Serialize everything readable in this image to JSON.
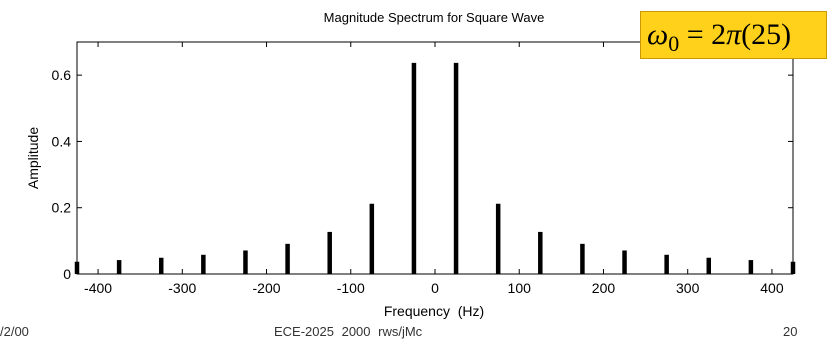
{
  "chart_data": {
    "type": "bar",
    "title": "Magnitude Spectrum for Square Wave",
    "xlabel": "Frequency  (Hz)",
    "ylabel": "Amplitude",
    "xlim": [
      -425,
      425
    ],
    "ylim": [
      0,
      0.7
    ],
    "xticks": [
      -400,
      -300,
      -200,
      -100,
      0,
      100,
      200,
      300,
      400
    ],
    "yticks": [
      0,
      0.2,
      0.4,
      0.6
    ],
    "x": [
      -425,
      -375,
      -325,
      -275,
      -225,
      -175,
      -125,
      -75,
      -25,
      25,
      75,
      125,
      175,
      225,
      275,
      325,
      375,
      425
    ],
    "values": [
      0.037,
      0.042,
      0.049,
      0.058,
      0.071,
      0.091,
      0.127,
      0.212,
      0.637,
      0.637,
      0.212,
      0.127,
      0.091,
      0.071,
      0.058,
      0.049,
      0.042,
      0.037
    ],
    "grid": false
  },
  "annotation": {
    "omega": "ω",
    "subscript": "0",
    "equals": " = 2",
    "pi": "π",
    "rest": "(25)"
  },
  "footer": {
    "left": "/2/00",
    "center": "ECE-2025  2000  rws/jMc",
    "right": "20"
  },
  "colors": {
    "annotation_bg": "#ffd11a",
    "stems": "#000000"
  }
}
